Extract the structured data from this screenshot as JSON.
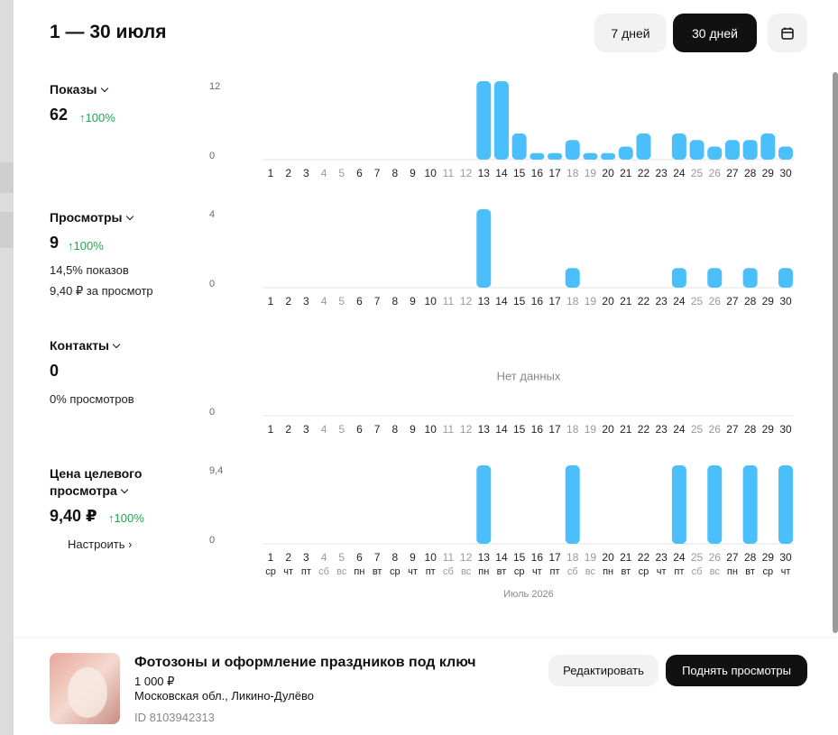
{
  "header": {
    "title": "1 — 30 июля",
    "buttons": [
      "7 дней",
      "30 дней"
    ]
  },
  "days": [
    "1",
    "2",
    "3",
    "4",
    "5",
    "6",
    "7",
    "8",
    "9",
    "10",
    "11",
    "12",
    "13",
    "14",
    "15",
    "16",
    "17",
    "18",
    "19",
    "20",
    "21",
    "22",
    "23",
    "24",
    "25",
    "26",
    "27",
    "28",
    "29",
    "30"
  ],
  "weekdays": [
    "ср",
    "чт",
    "пт",
    "сб",
    "вс",
    "пн",
    "вт",
    "ср",
    "чт",
    "пт",
    "сб",
    "вс",
    "пн",
    "вт",
    "ср",
    "чт",
    "пт",
    "сб",
    "вс",
    "пн",
    "вт",
    "ср",
    "чт",
    "пт",
    "сб",
    "вс",
    "пн",
    "вт",
    "ср",
    "чт"
  ],
  "month_label": "Июль 2026",
  "metrics": [
    {
      "title": "Показы",
      "value": "62",
      "delta": "↑100%",
      "chart": {
        "ylim": [
          0,
          12
        ],
        "yticks": [
          0,
          12
        ],
        "values": [
          0,
          0,
          0,
          0,
          0,
          0,
          0,
          0,
          0,
          0,
          0,
          0,
          12,
          12,
          4,
          1,
          1,
          3,
          1,
          1,
          2,
          4,
          0,
          4,
          3,
          2,
          3,
          3,
          4,
          2
        ]
      }
    },
    {
      "title": "Просмотры",
      "value": "9",
      "delta": "↑100%",
      "notes": [
        "14,5% показов",
        "9,40 ₽ за просмотр"
      ],
      "chart": {
        "ylim": [
          0,
          4
        ],
        "yticks": [
          0,
          4
        ],
        "values": [
          0,
          0,
          0,
          0,
          0,
          0,
          0,
          0,
          0,
          0,
          0,
          0,
          4,
          0,
          0,
          0,
          0,
          1,
          0,
          0,
          0,
          0,
          0,
          1,
          0,
          1,
          0,
          1,
          0,
          1
        ]
      }
    },
    {
      "title": "Контакты",
      "value": "0",
      "notes": [
        "0% просмотров"
      ],
      "chart": {
        "yticks": [
          0
        ],
        "empty_label": "Нет данных"
      }
    },
    {
      "title": "Цена целевого просмотра",
      "value": "9,40 ₽",
      "delta": "↑100%",
      "link": "Настроить ›",
      "chart": {
        "ylim": [
          0,
          9.4
        ],
        "yticks": [
          0,
          {
            "value": 9.4,
            "label": "9,4"
          }
        ],
        "values": [
          0,
          0,
          0,
          0,
          0,
          0,
          0,
          0,
          0,
          0,
          0,
          0,
          9.4,
          0,
          0,
          0,
          0,
          9.4,
          0,
          0,
          0,
          0,
          0,
          9.4,
          0,
          9.4,
          0,
          9.4,
          0,
          9.4
        ]
      }
    }
  ],
  "listing": {
    "title": "Фотозоны и оформление праздников под ключ",
    "price": "1 000 ₽",
    "location": "Московская обл., Ликино-Дулёво",
    "id": "ID 8103942313",
    "buttons": [
      "Редактировать",
      "Поднять просмотры"
    ]
  }
}
